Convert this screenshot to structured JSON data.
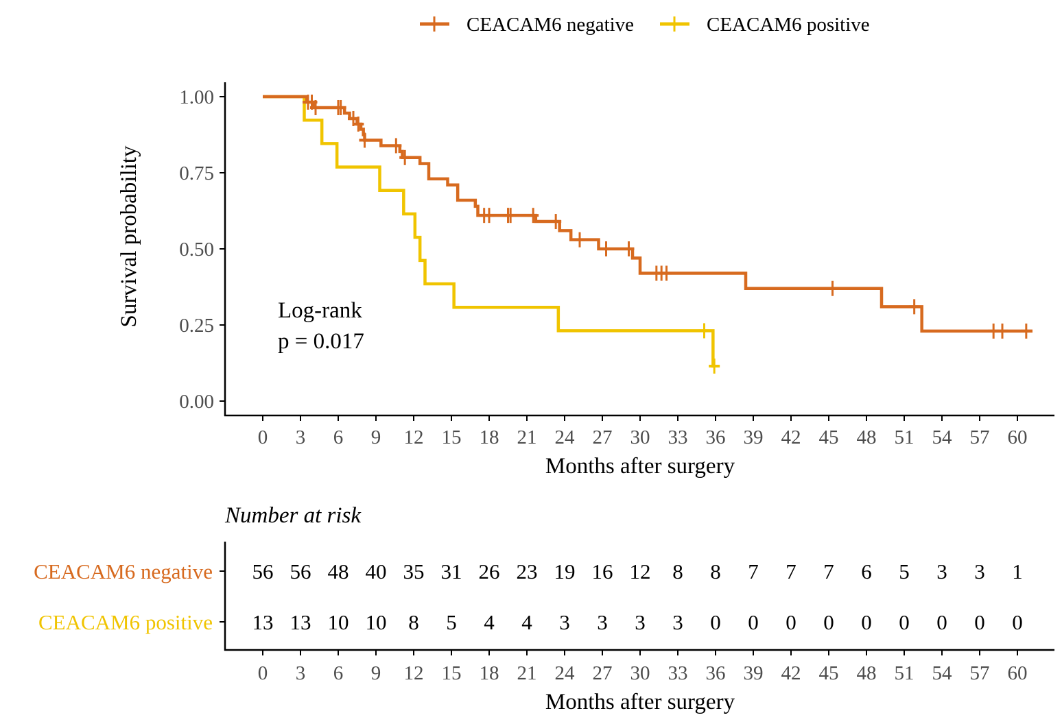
{
  "chart_data": {
    "type": "line",
    "subtype": "kaplan-meier",
    "xlabel": "Months after surgery",
    "ylabel": "Survival probability",
    "xlim": [
      0,
      60
    ],
    "ylim": [
      0,
      1
    ],
    "x_ticks": [
      0,
      3,
      6,
      9,
      12,
      15,
      18,
      21,
      24,
      27,
      30,
      33,
      36,
      39,
      42,
      45,
      48,
      51,
      54,
      57,
      60
    ],
    "y_ticks": [
      "0.00",
      "0.25",
      "0.50",
      "0.75",
      "1.00"
    ],
    "legend": {
      "placement": "top",
      "entries": [
        "CEACAM6 negative",
        "CEACAM6 positive"
      ]
    },
    "annotation": [
      "Log-rank",
      "p = 0.017"
    ],
    "series": [
      {
        "name": "CEACAM6 negative",
        "color": "#D76A1F",
        "steps": [
          [
            0,
            1.0
          ],
          [
            3.5,
            0.982
          ],
          [
            4.0,
            0.964
          ],
          [
            6.5,
            0.946
          ],
          [
            6.9,
            0.928
          ],
          [
            7.5,
            0.91
          ],
          [
            7.8,
            0.893
          ],
          [
            8.0,
            0.875
          ],
          [
            8.1,
            0.857
          ],
          [
            9.4,
            0.839
          ],
          [
            10.9,
            0.82
          ],
          [
            11.1,
            0.8
          ],
          [
            12.5,
            0.78
          ],
          [
            13.2,
            0.73
          ],
          [
            14.7,
            0.71
          ],
          [
            15.5,
            0.66
          ],
          [
            16.9,
            0.64
          ],
          [
            17.1,
            0.61
          ],
          [
            21.7,
            0.59
          ],
          [
            23.6,
            0.56
          ],
          [
            24.5,
            0.53
          ],
          [
            26.7,
            0.5
          ],
          [
            29.4,
            0.47
          ],
          [
            30.0,
            0.42
          ],
          [
            38.4,
            0.37
          ],
          [
            49.2,
            0.31
          ],
          [
            52.4,
            0.23
          ]
        ],
        "end": 61.2,
        "censors": [
          3.6,
          3.9,
          4.2,
          6.0,
          6.2,
          7.2,
          7.6,
          8.1,
          10.6,
          11.3,
          17.6,
          18.0,
          19.5,
          19.7,
          21.5,
          23.3,
          25.2,
          27.3,
          29.1,
          31.3,
          31.7,
          32.1,
          45.3,
          51.8,
          58.1,
          58.8,
          60.7
        ]
      },
      {
        "name": "CEACAM6 positive",
        "color": "#F0C400",
        "steps": [
          [
            0,
            1.0
          ],
          [
            3.3,
            0.923
          ],
          [
            4.7,
            0.846
          ],
          [
            5.9,
            0.769
          ],
          [
            9.3,
            0.692
          ],
          [
            11.2,
            0.615
          ],
          [
            12.1,
            0.538
          ],
          [
            12.5,
            0.462
          ],
          [
            12.9,
            0.385
          ],
          [
            15.2,
            0.308
          ],
          [
            23.5,
            0.231
          ],
          [
            35.8,
            0.115
          ]
        ],
        "end": 35.9,
        "censors": [
          35.1,
          35.9
        ]
      }
    ],
    "risk_table": {
      "title": "Number at risk",
      "xlabel": "Months after surgery",
      "rows": [
        {
          "name": "CEACAM6 negative",
          "color": "#D76A1F",
          "values": [
            56,
            56,
            48,
            40,
            35,
            31,
            26,
            23,
            19,
            16,
            12,
            8,
            8,
            7,
            7,
            7,
            6,
            5,
            3,
            3,
            1
          ]
        },
        {
          "name": "CEACAM6 positive",
          "color": "#F0C400",
          "values": [
            13,
            13,
            10,
            10,
            8,
            5,
            4,
            4,
            3,
            3,
            3,
            3,
            0,
            0,
            0,
            0,
            0,
            0,
            0,
            0,
            0
          ]
        }
      ]
    }
  }
}
